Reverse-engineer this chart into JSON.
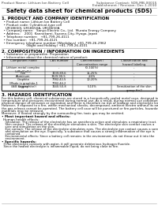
{
  "bg_color": "#ffffff",
  "header_left": "Product Name: Lithium Ion Battery Cell",
  "header_right_line1": "Substance Contact: SDS-MB-00015",
  "header_right_line2": "Establishment / Revision: Dec.1.2010",
  "title": "Safety data sheet for chemical products (SDS)",
  "section1_title": "1. PRODUCT AND COMPANY IDENTIFICATION",
  "section1_lines": [
    "  • Product name: Lithium Ion Battery Cell",
    "  • Product code: Cylindrical-type cell",
    "    UR18650J, UR18650A, UR18650A",
    "  • Company name:   Sanyo Electric Co., Ltd.  Murata Energy Company",
    "  • Address:    2001  Kannokami, Suzono-City, Hyogo, Japan",
    "  • Telephone number:   +81-799-26-4111",
    "  • Fax number:  +81-799-26-4121",
    "  • Emergency telephone number (Weekdays) +81-799-26-2962",
    "                         (Night and Holiday) +81-799-26-4101"
  ],
  "section2_title": "2. COMPOSITION / INFORMATION ON INGREDIENTS",
  "section2_sub": "  • Substance or preparation: Preparation",
  "section2_sub2": "  • Information about the chemical nature of product:",
  "table_col_headers": [
    "Component name",
    "CAS number",
    "Concentration /\nConcentration range\n(0-100%)",
    "Classification and\nhazard labeling"
  ],
  "table_rows": [
    [
      "Lithium metal complex\n(LiMn/CoO₄)",
      "-",
      "-",
      "-"
    ],
    [
      "Iron",
      "7439-89-6",
      "15-25%",
      "-"
    ],
    [
      "Aluminum",
      "7429-90-5",
      "2-6%",
      "-"
    ],
    [
      "Graphite\n(Made in graphite-1\n(A/B to graphite))",
      "7782-42-5\n7782-44-2",
      "10-20%",
      "-"
    ],
    [
      "Copper",
      "7440-50-8",
      "5-10%",
      "Sensitization of the skin\ngroup H+2"
    ]
  ],
  "section3_title": "3. HAZARDS IDENTIFICATION",
  "section3_para": [
    "For this battery cell, chemical substances are stored in a hermetically sealed metal case, designed to withstand",
    "temperature and pressures encountered during normal use. As a result, during normal use conditions, there is no",
    "physical danger of emission or expiration and there is therefore no risk of leakage and electrolyte leakage.",
    "However, if exposed to a fire, within mechanical shocks, decomposed, ambient electro without its own use,",
    "the gas release cannot be operated. The battery cell case will be punctured or fire-particles, hazardous",
    "materials may be released.",
    "Moreover, if heated strongly by the surrounding fire, toxic gas may be emitted."
  ],
  "section3_bullet1": "• Most important hazard and effects:",
  "section3_human_label": "Human health effects:",
  "section3_human_lines": [
    "  Inhalation: The release of the electrolyte has an anesthesia action and stimulates a respiratory tract.",
    "  Skin contact: The release of the electrolyte stimulates a skin. The electrolyte skin contact causes a",
    "  sore and stimulation on the skin.",
    "  Eye contact: The release of the electrolyte stimulates eyes. The electrolyte eye contact causes a sore",
    "  and stimulation on the eye. Especially, a substance that causes a strong inflammation of the eye is",
    "  contained.",
    "  Environmental effects: Since a battery cell remains in the environment, do not throw out it into the",
    "  environment."
  ],
  "section3_bullet2": "• Specific hazards:",
  "section3_specific_lines": [
    "  If the electrolyte contacts with water, it will generate deleterious hydrogen fluoride.",
    "  Since the heated electrolyte is inflammable liquid, do not bring close to fire."
  ]
}
